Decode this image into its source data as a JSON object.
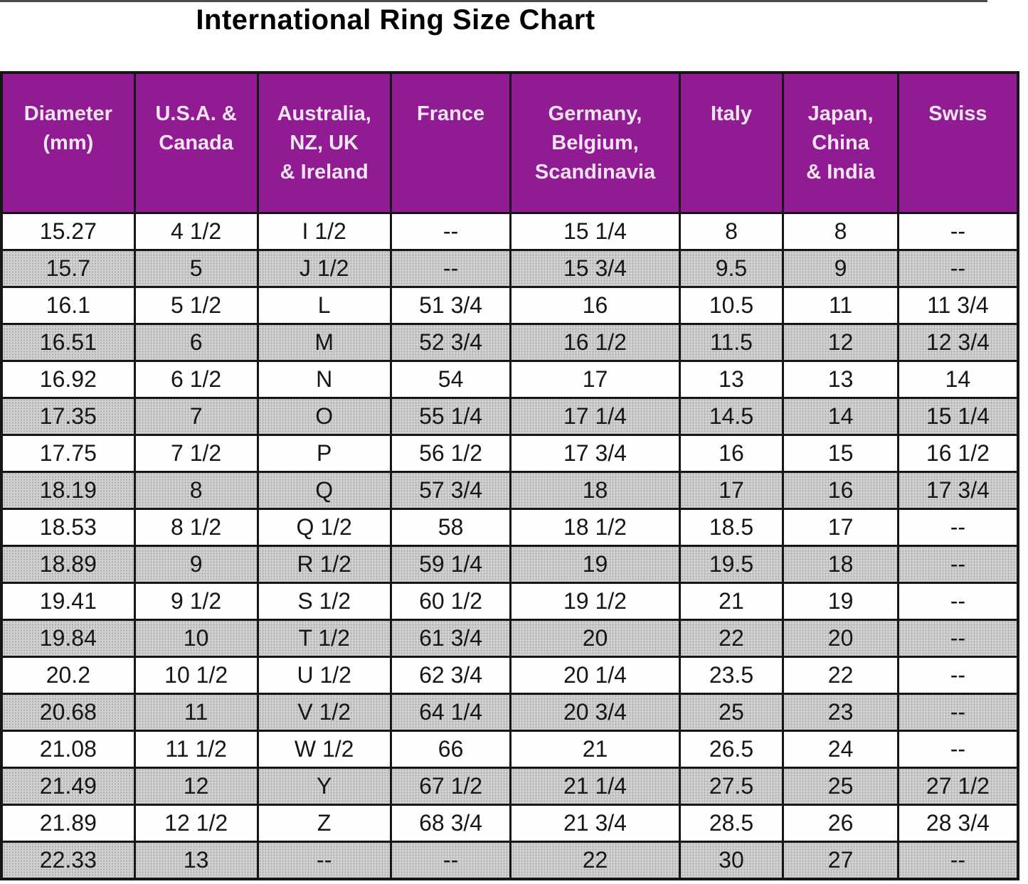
{
  "page_title": "International Ring Size Chart",
  "chart_data": {
    "type": "table",
    "title": "International Ring Size Chart",
    "columns": [
      "Diameter\n(mm)",
      "U.S.A. &\nCanada",
      "Australia,\nNZ, UK\n& Ireland",
      "France",
      "Germany,\nBelgium,\nScandinavia",
      "Italy",
      "Japan,\nChina\n& India",
      "Swiss"
    ],
    "column_keys": [
      "diameter-mm",
      "usa-canada",
      "australia-nz-uk-ireland",
      "france",
      "germany-belgium-scandinavia",
      "italy",
      "japan-china-india",
      "swiss"
    ],
    "missing_value_marker": "--",
    "rows": [
      [
        "15.27",
        "4 1/2",
        "I 1/2",
        "--",
        "15 1/4",
        "8",
        "8",
        "--"
      ],
      [
        "15.7",
        "5",
        "J 1/2",
        "--",
        "15 3/4",
        "9.5",
        "9",
        "--"
      ],
      [
        "16.1",
        "5 1/2",
        "L",
        "51 3/4",
        "16",
        "10.5",
        "11",
        "11 3/4"
      ],
      [
        "16.51",
        "6",
        "M",
        "52 3/4",
        "16 1/2",
        "11.5",
        "12",
        "12 3/4"
      ],
      [
        "16.92",
        "6 1/2",
        "N",
        "54",
        "17",
        "13",
        "13",
        "14"
      ],
      [
        "17.35",
        "7",
        "O",
        "55 1/4",
        "17 1/4",
        "14.5",
        "14",
        "15 1/4"
      ],
      [
        "17.75",
        "7 1/2",
        "P",
        "56 1/2",
        "17 3/4",
        "16",
        "15",
        "16 1/2"
      ],
      [
        "18.19",
        "8",
        "Q",
        "57 3/4",
        "18",
        "17",
        "16",
        "17 3/4"
      ],
      [
        "18.53",
        "8 1/2",
        "Q 1/2",
        "58",
        "18 1/2",
        "18.5",
        "17",
        "--"
      ],
      [
        "18.89",
        "9",
        "R 1/2",
        "59 1/4",
        "19",
        "19.5",
        "18",
        "--"
      ],
      [
        "19.41",
        "9 1/2",
        "S 1/2",
        "60 1/2",
        "19 1/2",
        "21",
        "19",
        "--"
      ],
      [
        "19.84",
        "10",
        "T 1/2",
        "61 3/4",
        "20",
        "22",
        "20",
        "--"
      ],
      [
        "20.2",
        "10 1/2",
        "U 1/2",
        "62 3/4",
        "20 1/4",
        "23.5",
        "22",
        "--"
      ],
      [
        "20.68",
        "11",
        "V 1/2",
        "64 1/4",
        "20 3/4",
        "25",
        "23",
        "--"
      ],
      [
        "21.08",
        "11 1/2",
        "W 1/2",
        "66",
        "21",
        "26.5",
        "24",
        "--"
      ],
      [
        "21.49",
        "12",
        "Y",
        "67 1/2",
        "21 1/4",
        "27.5",
        "25",
        "27 1/2"
      ],
      [
        "21.89",
        "12 1/2",
        "Z",
        "68 3/4",
        "21 3/4",
        "28.5",
        "26",
        "28 3/4"
      ],
      [
        "22.33",
        "13",
        "--",
        "--",
        "22",
        "30",
        "27",
        "--"
      ]
    ]
  },
  "colors": {
    "header_bg": "#911b93",
    "header_text": "#f7e4f5",
    "row_white_bg": "#fefefe",
    "row_gray_bg": "#c9c9c9",
    "grid_border": "#161616",
    "title_text": "#000000"
  }
}
